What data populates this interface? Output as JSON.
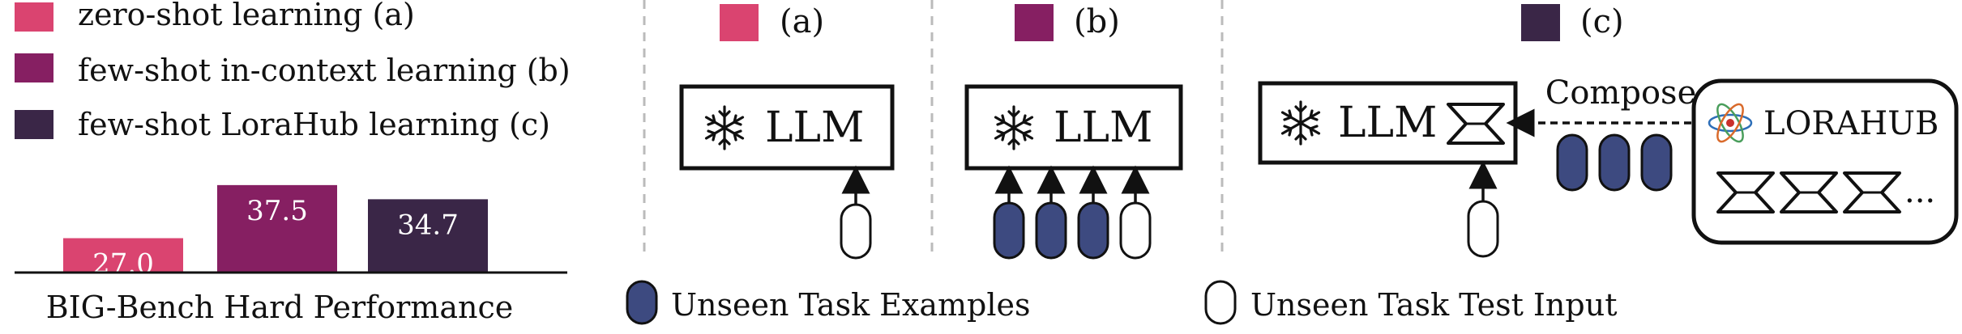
{
  "legend": {
    "items": [
      {
        "label": "zero-shot learning (a)",
        "color": "#DA4470"
      },
      {
        "label": "few-shot in-context learning (b)",
        "color": "#861F62"
      },
      {
        "label": "few-shot LoraHub learning (c)",
        "color": "#3A2647"
      }
    ]
  },
  "chart_data": {
    "type": "bar",
    "categories": [
      "zero-shot learning (a)",
      "few-shot in-context learning (b)",
      "few-shot LoraHub learning (c)"
    ],
    "values": [
      27.0,
      37.5,
      34.7
    ],
    "value_labels": [
      "27.0",
      "37.5",
      "34.7"
    ],
    "colors": [
      "#DA4470",
      "#861F62",
      "#3A2647"
    ],
    "xlabel": "BIG-Bench Hard Performance"
  },
  "panels": {
    "a": {
      "tag": "(a)",
      "color": "#DA4470",
      "llm": "LLM"
    },
    "b": {
      "tag": "(b)",
      "color": "#861F62",
      "llm": "LLM"
    },
    "c": {
      "tag": "(c)",
      "color": "#3A2647",
      "llm": "LLM",
      "compose": "Compose",
      "hub_name": "LORAHUB",
      "ellipsis": "..."
    }
  },
  "bottom_legend": {
    "examples": {
      "label": "Unseen Task Examples",
      "color": "#3D4A80"
    },
    "test_input": {
      "label": "Unseen Task Test Input",
      "color": "#ffffff"
    }
  }
}
